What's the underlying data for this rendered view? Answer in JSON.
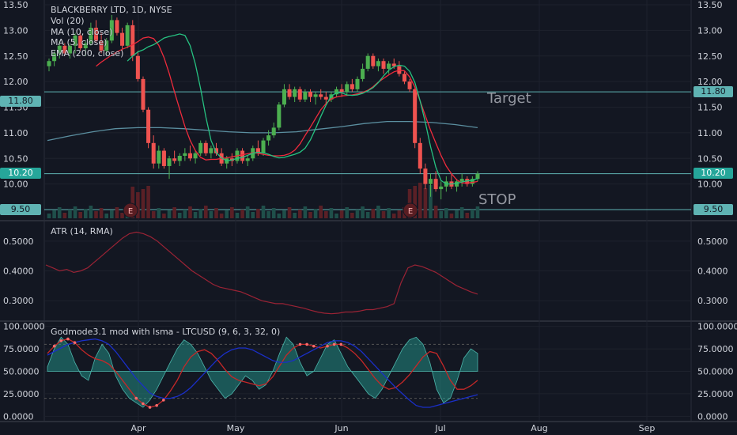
{
  "colors": {
    "background": "#131722",
    "grid": "#1e222d",
    "text": "#d1d4dc",
    "up": "#26a69a",
    "upBright": "#4caf50",
    "down": "#ef5350",
    "ma10": "#ef2b3c",
    "ma5": "#26c281",
    "ema200": "#5b8fa0",
    "atr": "#9b2335",
    "hline": "#5fb3b3",
    "earnings": "#5a1d22",
    "godBlue": "#1a2fc9",
    "godRed": "#c62828",
    "godFill": "#26a69a",
    "godDots": "#ff6b6b"
  },
  "header": {
    "title": "BLACKBERRY LTD, 1D, NYSE",
    "vol": "Vol (20)",
    "ma10": "MA (10, close)",
    "ma5": "MA (5, close)",
    "ema": "EMA (200, close)"
  },
  "atr_panel": {
    "title": "ATR (14, RMA)"
  },
  "god_panel": {
    "title": "Godmode3.1 mod with lsma - LTCUSD (9, 6, 3, 32, 0)"
  },
  "annotations": {
    "target_label": "Target",
    "stop_label": "STOP",
    "target_value": "11.80",
    "last_value": "10.20",
    "stop_value": "9.50",
    "earnings_marker": "E"
  },
  "chart_data": [
    {
      "type": "candlestick",
      "title": "BLACKBERRY LTD, 1D, NYSE",
      "ylim": [
        9.5,
        13.5
      ],
      "yticks": [
        "13.50",
        "13.00",
        "12.50",
        "12.00",
        "11.50",
        "11.00",
        "10.50",
        "10.00",
        "9.50"
      ],
      "xticks": [
        "Apr",
        "May",
        "Jun",
        "Jul",
        "Aug",
        "Sep"
      ],
      "candles": [
        [
          12.3,
          12.45,
          12.2,
          12.4
        ],
        [
          12.4,
          12.6,
          12.3,
          12.55
        ],
        [
          12.55,
          12.8,
          12.45,
          12.7
        ],
        [
          12.7,
          12.75,
          12.5,
          12.55
        ],
        [
          12.55,
          12.75,
          12.45,
          12.7
        ],
        [
          12.7,
          12.95,
          12.55,
          12.9
        ],
        [
          12.9,
          13.0,
          12.6,
          12.65
        ],
        [
          12.65,
          12.8,
          12.5,
          12.75
        ],
        [
          12.75,
          13.15,
          12.7,
          13.05
        ],
        [
          13.05,
          13.2,
          12.75,
          12.8
        ],
        [
          12.8,
          12.95,
          12.55,
          12.6
        ],
        [
          12.6,
          12.85,
          12.5,
          12.8
        ],
        [
          12.8,
          13.3,
          12.75,
          13.2
        ],
        [
          13.2,
          13.25,
          12.9,
          12.95
        ],
        [
          12.95,
          13.05,
          12.6,
          12.7
        ],
        [
          12.7,
          13.15,
          12.65,
          13.1
        ],
        [
          13.1,
          13.2,
          12.4,
          12.5
        ],
        [
          12.5,
          12.6,
          12.0,
          12.05
        ],
        [
          12.05,
          12.1,
          11.4,
          11.45
        ],
        [
          11.45,
          11.5,
          10.7,
          10.8
        ],
        [
          10.8,
          10.95,
          10.3,
          10.4
        ],
        [
          10.4,
          10.75,
          10.3,
          10.65
        ],
        [
          10.65,
          10.7,
          10.3,
          10.35
        ],
        [
          10.35,
          10.55,
          10.1,
          10.5
        ],
        [
          10.5,
          10.65,
          10.4,
          10.45
        ],
        [
          10.45,
          10.6,
          10.35,
          10.55
        ],
        [
          10.55,
          10.7,
          10.45,
          10.6
        ],
        [
          10.6,
          10.75,
          10.45,
          10.5
        ],
        [
          10.5,
          10.65,
          10.4,
          10.6
        ],
        [
          10.6,
          10.85,
          10.55,
          10.8
        ],
        [
          10.8,
          10.85,
          10.55,
          10.6
        ],
        [
          10.6,
          10.75,
          10.5,
          10.7
        ],
        [
          10.7,
          10.8,
          10.55,
          10.6
        ],
        [
          10.6,
          10.7,
          10.35,
          10.4
        ],
        [
          10.4,
          10.55,
          10.3,
          10.5
        ],
        [
          10.5,
          10.6,
          10.35,
          10.45
        ],
        [
          10.45,
          10.7,
          10.4,
          10.65
        ],
        [
          10.65,
          10.7,
          10.4,
          10.45
        ],
        [
          10.45,
          10.55,
          10.35,
          10.5
        ],
        [
          10.5,
          10.75,
          10.45,
          10.7
        ],
        [
          10.7,
          10.85,
          10.55,
          10.6
        ],
        [
          10.6,
          10.9,
          10.55,
          10.85
        ],
        [
          10.85,
          11.05,
          10.75,
          10.95
        ],
        [
          10.95,
          11.2,
          10.9,
          11.1
        ],
        [
          11.1,
          11.6,
          11.05,
          11.55
        ],
        [
          11.55,
          11.95,
          11.5,
          11.85
        ],
        [
          11.85,
          11.95,
          11.65,
          11.7
        ],
        [
          11.7,
          11.9,
          11.6,
          11.85
        ],
        [
          11.85,
          11.9,
          11.6,
          11.65
        ],
        [
          11.65,
          11.85,
          11.6,
          11.8
        ],
        [
          11.8,
          11.85,
          11.6,
          11.7
        ],
        [
          11.7,
          11.8,
          11.55,
          11.75
        ],
        [
          11.75,
          11.85,
          11.65,
          11.7
        ],
        [
          11.7,
          11.8,
          11.55,
          11.65
        ],
        [
          11.65,
          11.8,
          11.6,
          11.75
        ],
        [
          11.75,
          11.9,
          11.7,
          11.85
        ],
        [
          11.85,
          11.95,
          11.7,
          11.8
        ],
        [
          11.8,
          12.0,
          11.75,
          11.95
        ],
        [
          11.95,
          12.05,
          11.8,
          11.85
        ],
        [
          11.85,
          12.1,
          11.8,
          12.05
        ],
        [
          12.05,
          12.35,
          12.0,
          12.25
        ],
        [
          12.25,
          12.55,
          12.2,
          12.5
        ],
        [
          12.5,
          12.55,
          12.25,
          12.3
        ],
        [
          12.3,
          12.45,
          12.2,
          12.4
        ],
        [
          12.4,
          12.45,
          12.15,
          12.25
        ],
        [
          12.25,
          12.4,
          12.15,
          12.35
        ],
        [
          12.35,
          12.45,
          12.25,
          12.3
        ],
        [
          12.3,
          12.4,
          12.1,
          12.15
        ],
        [
          12.15,
          12.2,
          11.95,
          12.0
        ],
        [
          12.0,
          12.05,
          11.8,
          11.85
        ],
        [
          11.85,
          11.9,
          10.7,
          10.8
        ],
        [
          10.8,
          10.9,
          10.2,
          10.3
        ],
        [
          10.3,
          10.4,
          9.9,
          10.0
        ],
        [
          10.0,
          10.2,
          9.75,
          10.1
        ],
        [
          10.1,
          10.25,
          9.85,
          9.9
        ],
        [
          9.9,
          10.05,
          9.7,
          9.95
        ],
        [
          9.95,
          10.15,
          9.85,
          10.05
        ],
        [
          10.05,
          10.2,
          9.9,
          9.95
        ],
        [
          9.95,
          10.1,
          9.85,
          10.05
        ],
        [
          10.05,
          10.2,
          9.95,
          10.1
        ],
        [
          10.1,
          10.15,
          9.95,
          10.0
        ],
        [
          10.0,
          10.15,
          9.95,
          10.1
        ],
        [
          10.1,
          10.25,
          10.05,
          10.2
        ]
      ],
      "ma10": [
        12.3,
        12.38,
        12.45,
        12.52,
        12.58,
        12.63,
        12.67,
        12.72,
        12.78,
        12.85,
        12.87,
        12.84,
        12.71,
        12.47,
        12.16,
        11.8,
        11.46,
        11.12,
        10.85,
        10.65,
        10.52,
        10.47,
        10.48,
        10.48,
        10.5,
        10.51,
        10.53,
        10.55,
        10.57,
        10.59,
        10.61,
        10.6,
        10.58,
        10.56,
        10.55,
        10.55,
        10.56,
        10.59,
        10.66,
        10.78,
        10.95,
        11.11,
        11.28,
        11.45,
        11.57,
        11.66,
        11.7,
        11.72,
        11.73,
        11.74,
        11.76,
        11.79,
        11.83,
        11.9,
        11.99,
        12.06,
        12.13,
        12.19,
        12.22,
        12.21,
        12.09,
        11.89,
        11.62,
        11.33,
        11.05,
        10.8,
        10.56,
        10.35,
        10.2,
        10.08,
        10.02,
        10.02,
        10.03,
        10.05
      ],
      "ma5": [
        12.4,
        12.5,
        12.58,
        12.62,
        12.68,
        12.72,
        12.78,
        12.85,
        12.88,
        12.9,
        12.93,
        12.9,
        12.7,
        12.34,
        11.86,
        11.31,
        10.85,
        10.61,
        10.51,
        10.45,
        10.47,
        10.5,
        10.52,
        10.56,
        10.6,
        10.62,
        10.61,
        10.58,
        10.54,
        10.51,
        10.52,
        10.55,
        10.58,
        10.62,
        10.7,
        10.86,
        11.08,
        11.32,
        11.54,
        11.72,
        11.78,
        11.78,
        11.74,
        11.73,
        11.74,
        11.77,
        11.82,
        11.88,
        11.98,
        12.11,
        12.22,
        12.29,
        12.32,
        12.3,
        12.2,
        11.98,
        11.62,
        11.2,
        10.73,
        10.33,
        10.07,
        10.0,
        10.0,
        10.01,
        10.04,
        10.06,
        10.07,
        10.11
      ],
      "ema200": [
        10.85,
        10.94,
        11.02,
        11.08,
        11.1,
        11.1,
        11.08,
        11.05,
        11.02,
        11.0,
        11.0,
        11.02,
        11.07,
        11.12,
        11.18,
        11.22,
        11.22,
        11.2,
        11.16,
        11.1
      ]
    },
    {
      "type": "line",
      "title": "ATR (14, RMA)",
      "ylim": [
        0.25,
        0.55
      ],
      "yticks": [
        "0.5000",
        "0.4000",
        "0.3000"
      ],
      "values": [
        0.42,
        0.41,
        0.4,
        0.405,
        0.395,
        0.4,
        0.41,
        0.43,
        0.45,
        0.47,
        0.49,
        0.51,
        0.525,
        0.53,
        0.525,
        0.515,
        0.5,
        0.48,
        0.46,
        0.44,
        0.42,
        0.4,
        0.385,
        0.37,
        0.355,
        0.345,
        0.34,
        0.335,
        0.33,
        0.32,
        0.31,
        0.3,
        0.295,
        0.29,
        0.29,
        0.285,
        0.28,
        0.275,
        0.268,
        0.262,
        0.258,
        0.256,
        0.258,
        0.262,
        0.262,
        0.265,
        0.27,
        0.27,
        0.275,
        0.28,
        0.29,
        0.36,
        0.41,
        0.42,
        0.415,
        0.405,
        0.395,
        0.38,
        0.365,
        0.35,
        0.34,
        0.33,
        0.322
      ]
    },
    {
      "type": "area",
      "title": "Godmode3.1 mod with lsma - LTCUSD (9, 6, 3, 32, 0)",
      "ylim": [
        -5,
        105
      ],
      "yticks": [
        "100.0000",
        "75.0000",
        "50.0000",
        "25.0000",
        "0.0000"
      ],
      "baseline": 50,
      "series": [
        {
          "values": [
            55,
            75,
            88,
            80,
            60,
            45,
            40,
            65,
            80,
            70,
            45,
            30,
            20,
            15,
            10,
            18,
            30,
            45,
            60,
            75,
            85,
            80,
            70,
            55,
            40,
            30,
            20,
            25,
            35,
            45,
            40,
            30,
            35,
            50,
            70,
            88,
            80,
            60,
            45,
            50,
            65,
            80,
            85,
            70,
            55,
            45,
            35,
            25,
            20,
            30,
            45,
            60,
            75,
            85,
            88,
            80,
            60,
            30,
            15,
            20,
            40,
            65,
            75,
            70
          ]
        },
        {
          "values": [
            70,
            78,
            84,
            86,
            82,
            74,
            68,
            64,
            62,
            58,
            50,
            40,
            30,
            20,
            14,
            10,
            12,
            18,
            28,
            40,
            55,
            66,
            72,
            74,
            70,
            62,
            52,
            44,
            40,
            38,
            36,
            34,
            36,
            44,
            56,
            68,
            76,
            80,
            80,
            78,
            76,
            78,
            80,
            80,
            76,
            70,
            62,
            52,
            42,
            34,
            30,
            32,
            38,
            46,
            56,
            66,
            72,
            70,
            56,
            40,
            30,
            30,
            34,
            40
          ]
        },
        {
          "values": [
            68,
            72,
            76,
            80,
            82,
            84,
            85,
            86,
            84,
            80,
            72,
            62,
            52,
            42,
            34,
            26,
            22,
            20,
            20,
            22,
            26,
            32,
            40,
            48,
            56,
            64,
            70,
            74,
            76,
            76,
            74,
            70,
            66,
            62,
            60,
            60,
            62,
            66,
            70,
            74,
            78,
            82,
            84,
            84,
            82,
            78,
            72,
            64,
            56,
            48,
            40,
            32,
            25,
            18,
            12,
            10,
            10,
            12,
            14,
            16,
            18,
            20,
            22,
            24
          ]
        }
      ]
    }
  ]
}
